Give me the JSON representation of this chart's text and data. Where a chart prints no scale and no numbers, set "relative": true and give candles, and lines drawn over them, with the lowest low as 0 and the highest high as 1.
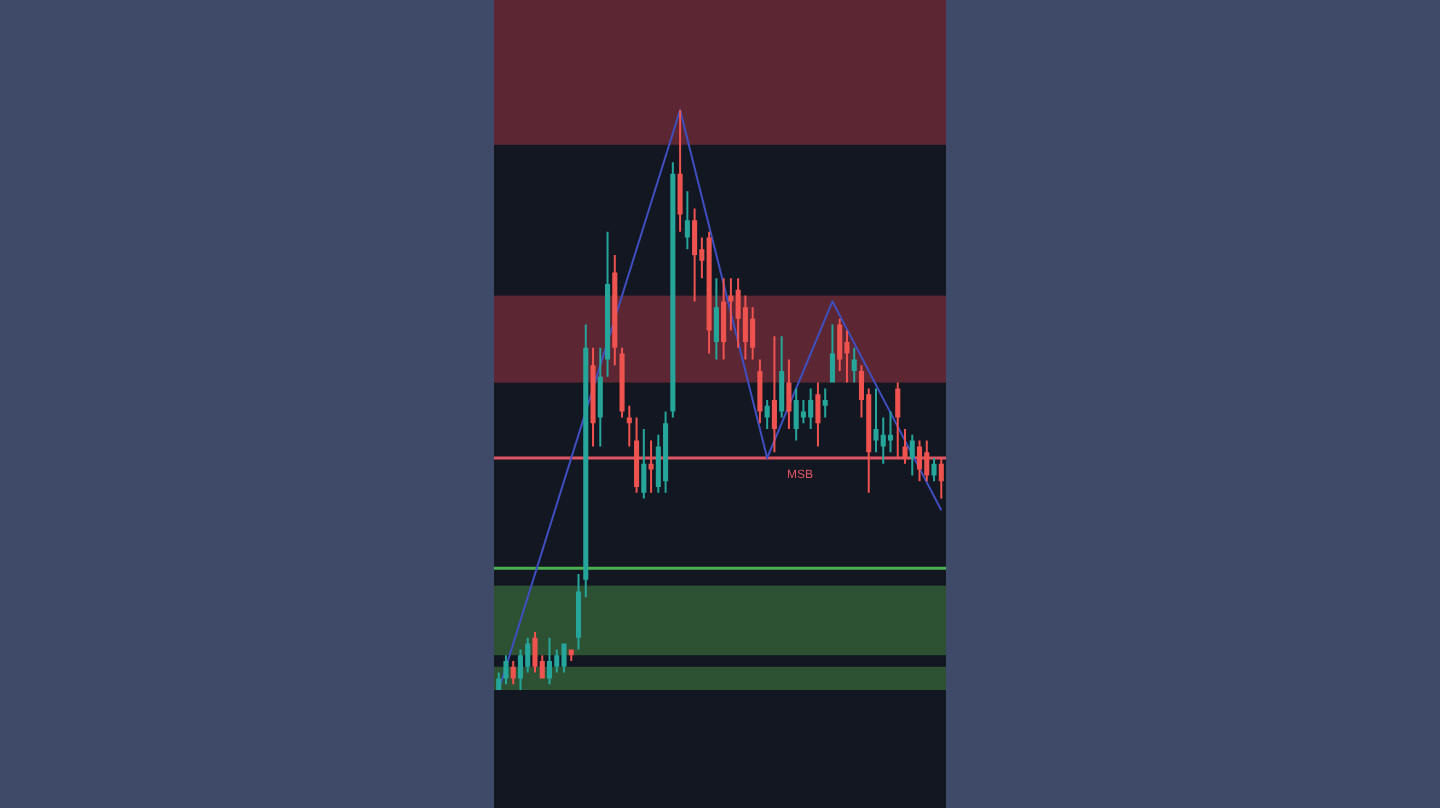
{
  "chart_data": {
    "type": "candlestick",
    "relative": true,
    "categories": [
      null,
      null,
      null,
      null,
      null,
      null,
      null,
      null,
      null,
      null,
      null,
      null,
      null,
      null,
      null,
      null,
      null,
      null,
      null,
      null,
      null,
      null,
      null,
      null,
      null,
      null,
      null,
      null,
      null,
      null,
      null,
      null,
      null,
      null,
      null,
      null,
      null,
      null,
      null,
      null,
      null,
      null,
      null,
      null,
      null,
      null,
      null,
      null,
      null,
      null,
      null,
      null,
      null,
      null,
      null,
      null,
      null,
      null,
      null,
      null,
      null,
      null
    ],
    "ohlc": [
      [
        0,
        0.03,
        0,
        0.02
      ],
      [
        0.02,
        0.06,
        0.01,
        0.05
      ],
      [
        0.04,
        0.05,
        0.01,
        0.02
      ],
      [
        0.02,
        0.07,
        0,
        0.06
      ],
      [
        0.04,
        0.09,
        0.03,
        0.08
      ],
      [
        0.09,
        0.1,
        0.03,
        0.04
      ],
      [
        0.05,
        0.06,
        0.02,
        0.02
      ],
      [
        0.02,
        0.09,
        0.01,
        0.05
      ],
      [
        0.04,
        0.07,
        0.03,
        0.06
      ],
      [
        0.04,
        0.08,
        0.03,
        0.08
      ],
      [
        0.07,
        0.07,
        0.05,
        0.06
      ],
      [
        0.09,
        0.2,
        0.07,
        0.17
      ],
      [
        0.19,
        0.63,
        0.16,
        0.59
      ],
      [
        0.56,
        0.59,
        0.42,
        0.46
      ],
      [
        0.47,
        0.59,
        0.42,
        0.54
      ],
      [
        0.57,
        0.79,
        0.54,
        0.7
      ],
      [
        0.72,
        0.75,
        0.56,
        0.59
      ],
      [
        0.58,
        0.59,
        0.47,
        0.48
      ],
      [
        0.47,
        0.49,
        0.42,
        0.46
      ],
      [
        0.43,
        0.47,
        0.34,
        0.35
      ],
      [
        0.34,
        0.45,
        0.33,
        0.39
      ],
      [
        0.39,
        0.43,
        0.34,
        0.38
      ],
      [
        0.35,
        0.44,
        0.34,
        0.42
      ],
      [
        0.36,
        0.48,
        0.34,
        0.46
      ],
      [
        0.48,
        0.91,
        0.47,
        0.89
      ],
      [
        0.89,
        1,
        0.79,
        0.82
      ],
      [
        0.78,
        0.86,
        0.76,
        0.81
      ],
      [
        0.81,
        0.83,
        0.67,
        0.75
      ],
      [
        0.76,
        0.78,
        0.71,
        0.74
      ],
      [
        0.78,
        0.79,
        0.58,
        0.62
      ],
      [
        0.6,
        0.71,
        0.57,
        0.66
      ],
      [
        0.67,
        0.71,
        0.57,
        0.6
      ],
      [
        0.68,
        0.71,
        0.62,
        0.67
      ],
      [
        0.69,
        0.71,
        0.59,
        0.64
      ],
      [
        0.66,
        0.68,
        0.57,
        0.6
      ],
      [
        0.64,
        0.66,
        0.57,
        0.59
      ],
      [
        0.55,
        0.57,
        0.46,
        0.48
      ],
      [
        0.47,
        0.5,
        0.45,
        0.49
      ],
      [
        0.5,
        0.61,
        0.41,
        0.45
      ],
      [
        0.48,
        0.61,
        0.47,
        0.55
      ],
      [
        0.53,
        0.57,
        0.45,
        0.48
      ],
      [
        0.45,
        0.52,
        0.43,
        0.5
      ],
      [
        0.47,
        0.5,
        0.46,
        0.48
      ],
      [
        0.47,
        0.52,
        0.45,
        0.5
      ],
      [
        0.51,
        0.53,
        0.42,
        0.46
      ],
      [
        0.49,
        0.52,
        0.47,
        0.5
      ],
      [
        0.53,
        0.63,
        0.53,
        0.58
      ],
      [
        0.63,
        0.64,
        0.55,
        0.57
      ],
      [
        0.6,
        0.62,
        0.53,
        0.58
      ],
      [
        0.55,
        0.59,
        0.53,
        0.57
      ],
      [
        0.55,
        0.56,
        0.47,
        0.5
      ],
      [
        0.51,
        0.52,
        0.34,
        0.41
      ],
      [
        0.43,
        0.52,
        0.41,
        0.45
      ],
      [
        0.42,
        0.47,
        0.39,
        0.44
      ],
      [
        0.43,
        0.48,
        0.41,
        0.44
      ],
      [
        0.52,
        0.53,
        0.4,
        0.47
      ],
      [
        0.42,
        0.45,
        0.39,
        0.4
      ],
      [
        0.4,
        0.44,
        0.37,
        0.43
      ],
      [
        0.42,
        0.43,
        0.36,
        0.38
      ],
      [
        0.41,
        0.43,
        0.36,
        0.37
      ],
      [
        0.37,
        0.4,
        0.36,
        0.39
      ],
      [
        0.39,
        0.4,
        0.33,
        0.36
      ]
    ],
    "series": [
      {
        "type": "line",
        "values": [
          0,
          null,
          null,
          null,
          null,
          null,
          null,
          null,
          null,
          null,
          null,
          null,
          null,
          null,
          null,
          null,
          null,
          null,
          null,
          null,
          null,
          null,
          null,
          null,
          null,
          1,
          null,
          null,
          null,
          null,
          null,
          null,
          null,
          null,
          null,
          null,
          null,
          0.4,
          null,
          null,
          null,
          null,
          null,
          null,
          null,
          null,
          0.67,
          null,
          null,
          null,
          null,
          null,
          null,
          null,
          null,
          null,
          null,
          null,
          null,
          null,
          null,
          0.31
        ],
        "color": "#3f4fc0"
      }
    ],
    "bands": [
      {
        "axis": "y",
        "from": 0.94,
        "to": 1.19,
        "color": "#5c2733"
      },
      {
        "axis": "y",
        "from": 0.53,
        "to": 0.68,
        "color": "#5c2733"
      },
      {
        "axis": "y",
        "from": 0.06,
        "to": 0.18,
        "color": "#2c5233"
      },
      {
        "axis": "y",
        "from": 0,
        "to": 0.04,
        "color": "#2c5233"
      }
    ],
    "ref_lines": [
      {
        "axis": "y",
        "value": 0.21,
        "color": "#4caf50"
      },
      {
        "axis": "y",
        "value": 0.4,
        "label": "MSB",
        "color": "#e05561"
      }
    ]
  }
}
